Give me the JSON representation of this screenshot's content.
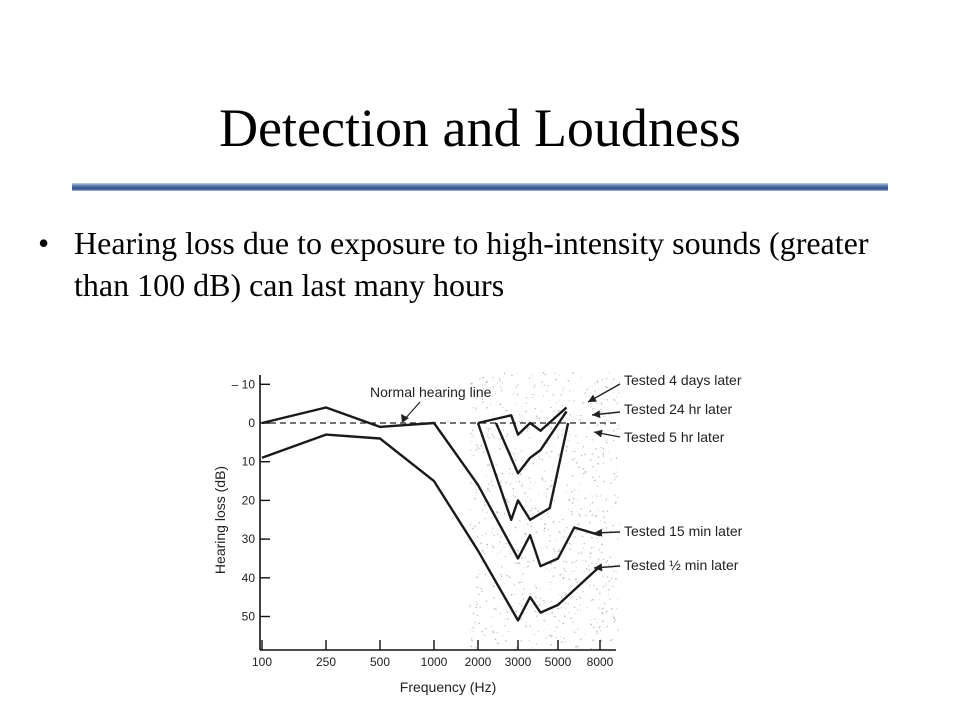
{
  "slide": {
    "title": "Detection and Loudness",
    "bullets": [
      "Hearing loss due to exposure to high-intensity sounds (greater than 100 dB) can last many hours"
    ]
  },
  "chart_data": {
    "type": "line",
    "xlabel": "Frequency (Hz)",
    "ylabel": "Hearing loss (dB)",
    "x_scale": "log",
    "x_ticks": [
      100,
      250,
      500,
      1000,
      2000,
      3000,
      5000,
      8000
    ],
    "x_tick_labels": [
      "100",
      "250",
      "500",
      "1000",
      "2000",
      "3000",
      "5000",
      "8000"
    ],
    "y_ticks": [
      -10,
      0,
      10,
      20,
      30,
      40,
      50
    ],
    "y_tick_labels": [
      "– 10",
      "0",
      "10",
      "20",
      "30",
      "40",
      "50"
    ],
    "ylim": [
      -10,
      50
    ],
    "y_inverted": true,
    "reference_line": {
      "label": "Normal hearing line",
      "y": 0
    },
    "series": [
      {
        "name": "Tested 4 days later",
        "x": [
          2000,
          2800,
          3000,
          3500,
          4000,
          5500
        ],
        "y": [
          0,
          -2,
          3,
          0,
          2,
          -4
        ]
      },
      {
        "name": "Tested 24 hr later",
        "x": [
          2400,
          3000,
          3500,
          4000,
          5500
        ],
        "y": [
          0,
          13,
          9,
          7,
          -3
        ]
      },
      {
        "name": "Tested 5 hr later",
        "x": [
          2000,
          2800,
          3000,
          3500,
          4500,
          5600
        ],
        "y": [
          0,
          25,
          20,
          25,
          22,
          0
        ]
      },
      {
        "name": "Tested 15 min later",
        "x": [
          100,
          250,
          500,
          1000,
          2000,
          3000,
          3500,
          4000,
          5000,
          6000,
          8000
        ],
        "y": [
          0,
          -4,
          1,
          0,
          16,
          35,
          29,
          37,
          35,
          27,
          29
        ]
      },
      {
        "name": "Tested ½ min later",
        "x": [
          100,
          250,
          500,
          1000,
          2000,
          3000,
          3500,
          4000,
          5000,
          8000
        ],
        "y": [
          9,
          3,
          4,
          15,
          33,
          51,
          45,
          49,
          47,
          37
        ]
      }
    ]
  }
}
